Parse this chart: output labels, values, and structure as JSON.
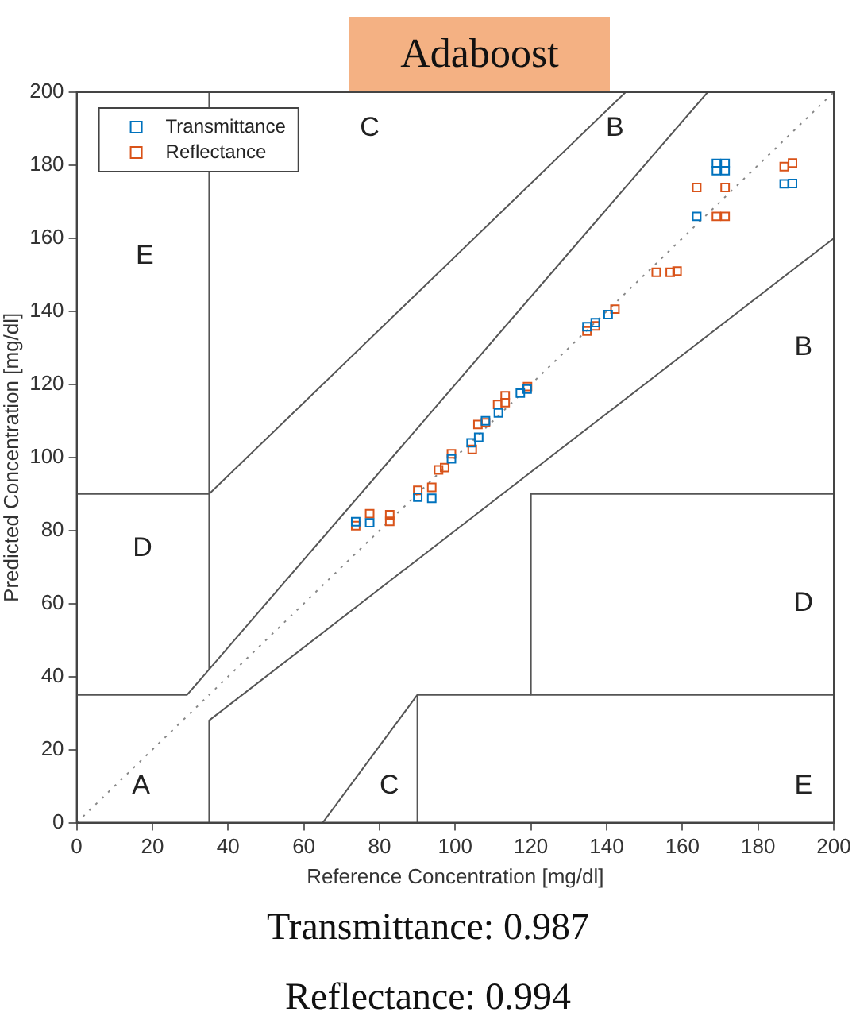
{
  "chart_data": {
    "type": "scatter",
    "title": "Adaboost",
    "xlabel": "Reference Concentration [mg/dl]",
    "ylabel": "Predicted Concentration [mg/dl]",
    "xlim": [
      0,
      200
    ],
    "ylim": [
      0,
      200
    ],
    "xticks": [
      0,
      20,
      40,
      60,
      80,
      100,
      120,
      140,
      160,
      180,
      200
    ],
    "yticks": [
      0,
      20,
      40,
      60,
      80,
      100,
      120,
      140,
      160,
      180,
      200
    ],
    "grid": false,
    "legend": "top left",
    "series": [
      {
        "name": "Transmittance",
        "type": "scatter",
        "marker": "square",
        "color": "#0072bd",
        "x": [
          73.7,
          77.4,
          90.1,
          93.8,
          99,
          104.2,
          106.2,
          108,
          111.4,
          117.2,
          119,
          134.8,
          137,
          140.4,
          163.8,
          169,
          171.3,
          169,
          171.3,
          186.9,
          189.1
        ],
        "values": [
          82.4,
          82.1,
          89.1,
          88.8,
          99.6,
          104,
          105.5,
          110,
          112.2,
          117.6,
          118.7,
          135.8,
          136.9,
          139.1,
          166,
          178.5,
          178.5,
          180.5,
          180.5,
          174.9,
          175
        ]
      },
      {
        "name": "Reflectance",
        "type": "scatter",
        "marker": "square",
        "color": "#d95319",
        "x": [
          73.7,
          77.4,
          82.7,
          82.7,
          90.1,
          93.8,
          95.6,
          97.2,
          99,
          104.5,
          106,
          108,
          111.2,
          113.2,
          113.2,
          117,
          119.1,
          134.8,
          137,
          142.2,
          153.1,
          156.8,
          158.6,
          163.8,
          171.3,
          169,
          171.3,
          186.9,
          189.1
        ],
        "values": [
          81.3,
          84.6,
          84.3,
          82.5,
          91,
          91.8,
          96.6,
          97.2,
          101,
          102.2,
          109,
          109.5,
          114.5,
          115,
          116.9,
          null,
          119.4,
          134.6,
          136,
          140.6,
          150.7,
          150.7,
          151,
          173.9,
          173.9,
          166,
          166,
          179.6,
          180.6
        ]
      },
      {
        "type": "line",
        "color": "#888888",
        "line_style": "dotted",
        "x": [
          0,
          200
        ],
        "values": [
          0,
          200
        ]
      },
      {
        "type": "line",
        "color": "#555555",
        "x": [
          0,
          29.17,
          166.67
        ],
        "values": [
          35,
          35,
          200
        ]
      },
      {
        "type": "line",
        "color": "#555555",
        "x": [
          35,
          35
        ],
        "values": [
          42,
          200
        ]
      },
      {
        "type": "line",
        "color": "#555555",
        "x": [
          35,
          35,
          200
        ],
        "values": [
          0,
          28,
          160
        ]
      },
      {
        "type": "line",
        "color": "#555555",
        "x": [
          0,
          35,
          145
        ],
        "values": [
          90,
          90,
          200
        ]
      },
      {
        "type": "line",
        "color": "#555555",
        "x": [
          200,
          120,
          120,
          200
        ],
        "values": [
          90,
          90,
          35,
          35
        ]
      },
      {
        "type": "line",
        "color": "#555555",
        "x": [
          65,
          90,
          90
        ],
        "values": [
          0,
          35,
          0
        ]
      },
      {
        "type": "line",
        "color": "#555555",
        "x": [
          90,
          120
        ],
        "values": [
          35,
          35
        ]
      }
    ],
    "annotations": [
      "C",
      "B",
      "E",
      "B",
      "D",
      "D",
      "A",
      "C",
      "E",
      "Transmittance: 0.987",
      "Reflectance: 0.994"
    ]
  }
}
